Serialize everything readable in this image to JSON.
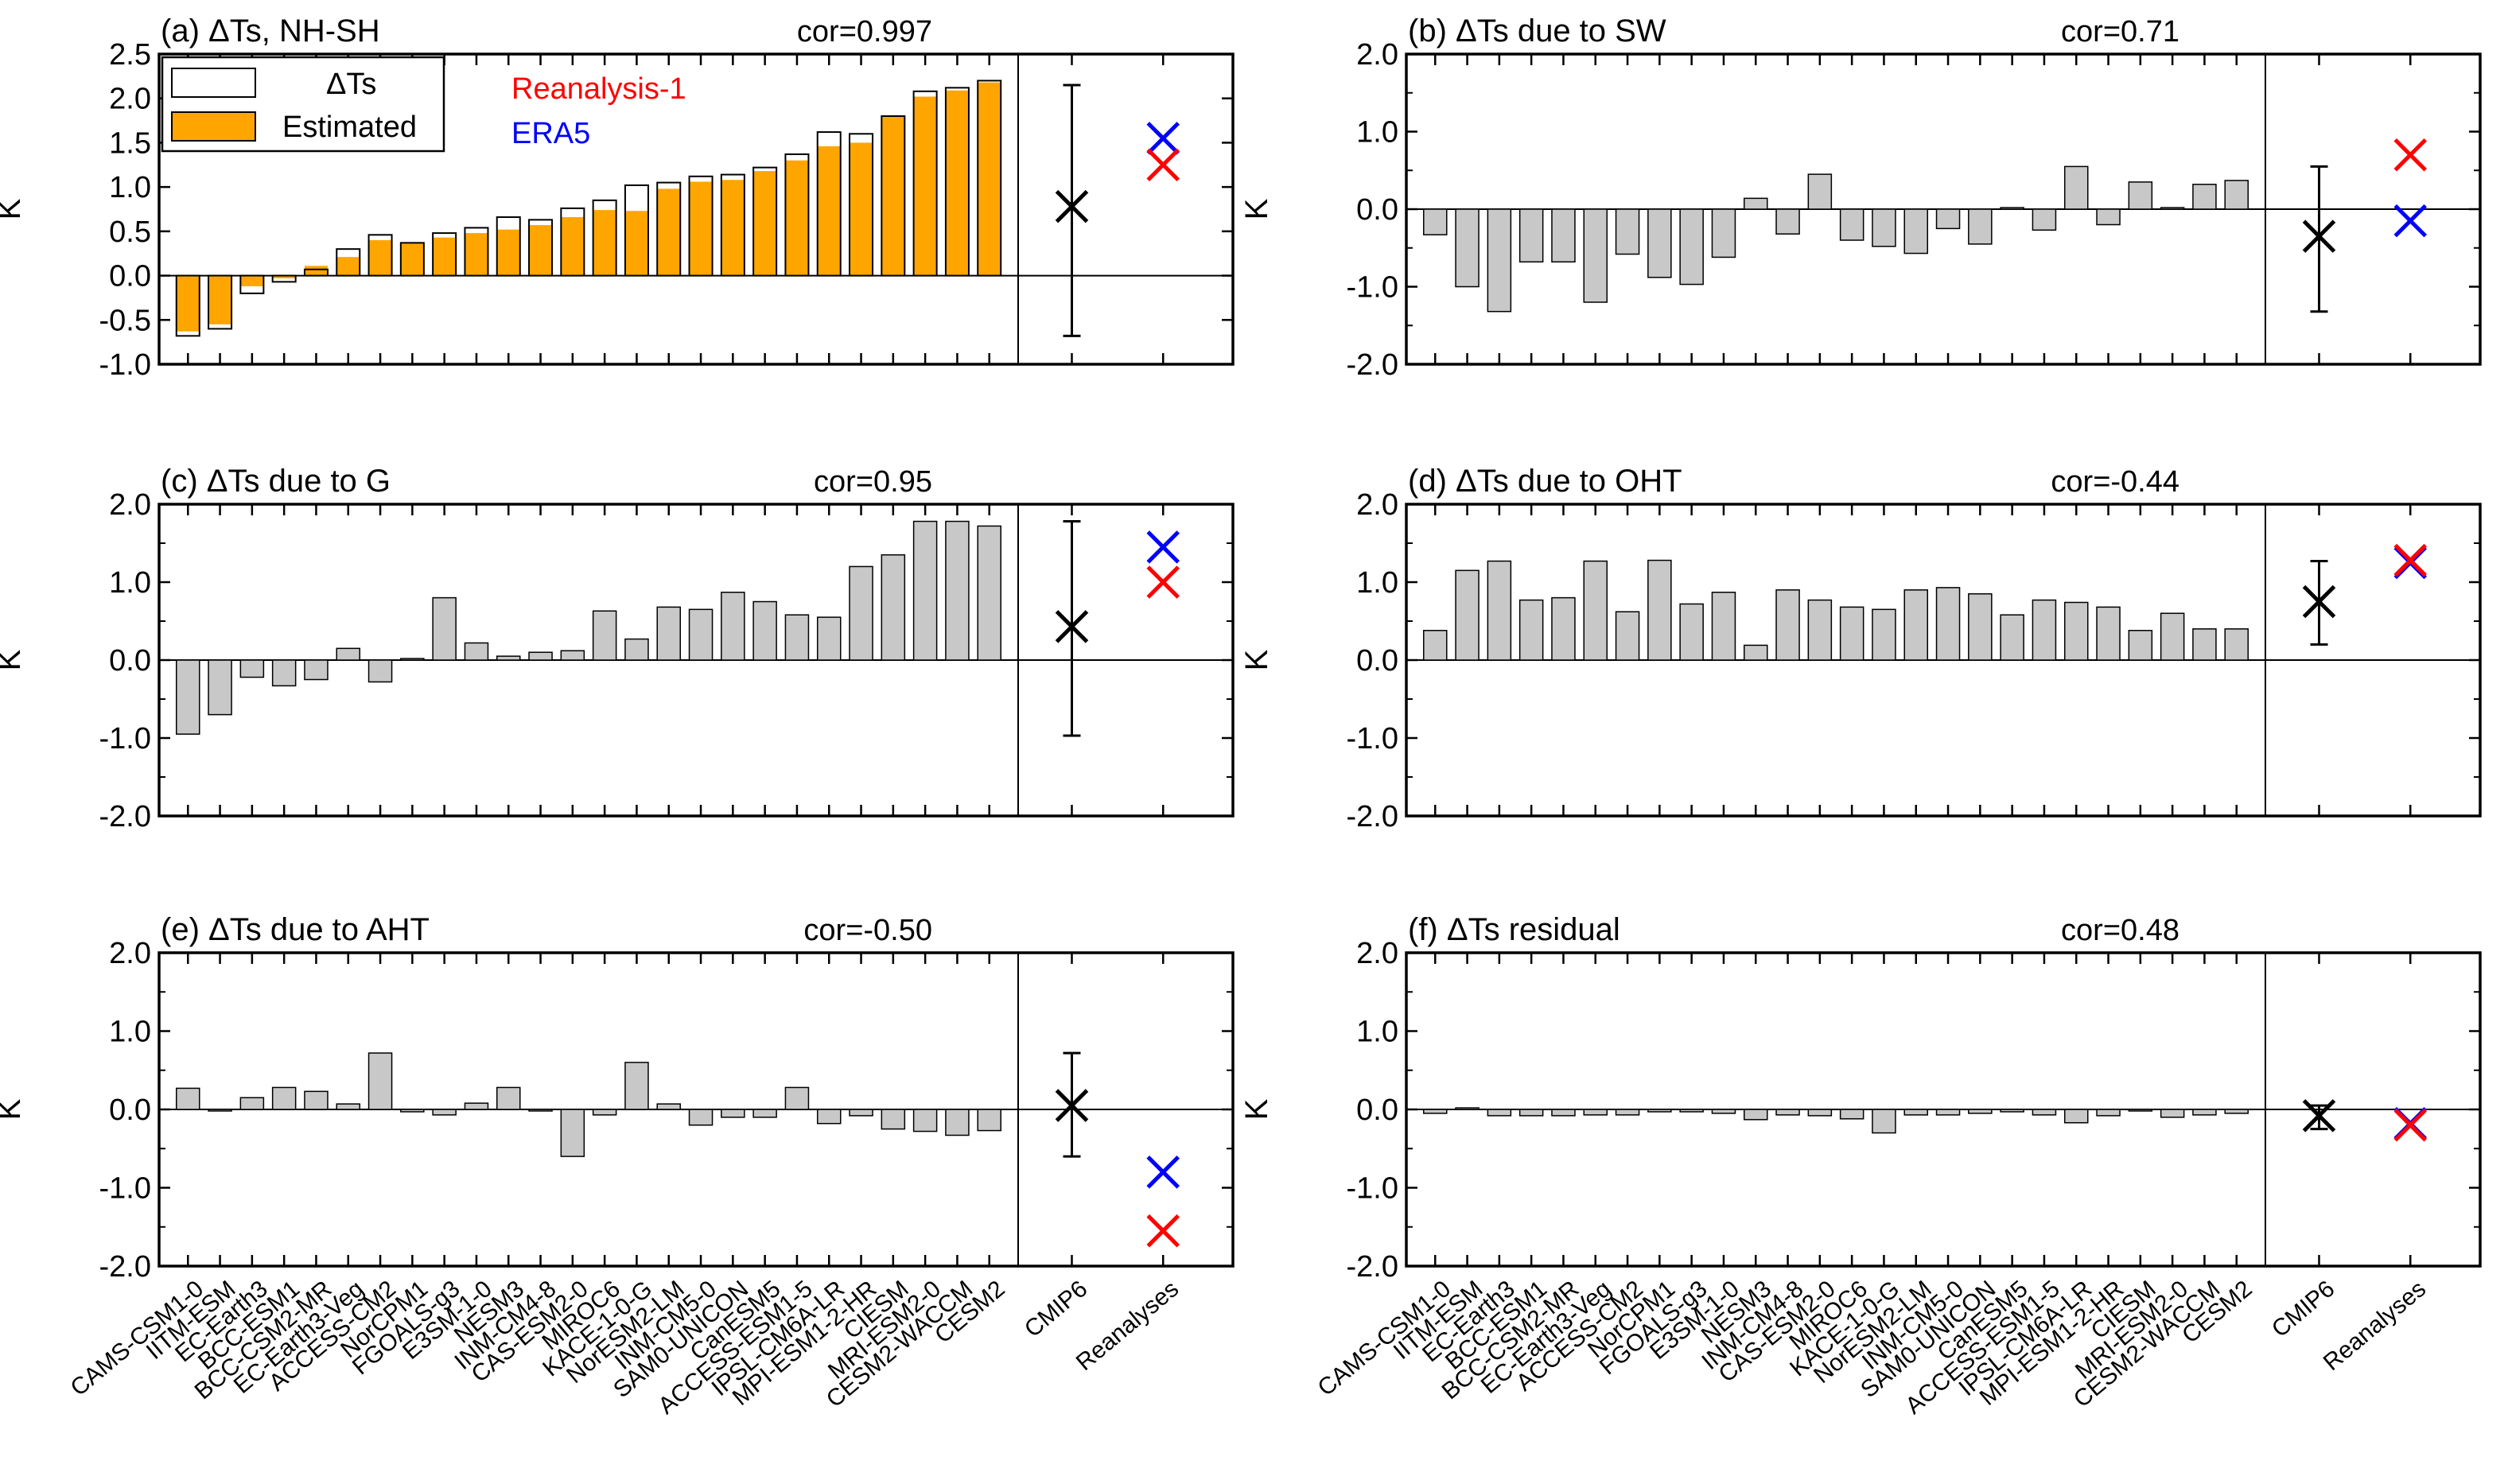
{
  "models": [
    "CAMS-CSM1-0",
    "IITM-ESM",
    "EC-Earth3",
    "BCC-ESM1",
    "BCC-CSM2-MR",
    "EC-Earth3-Veg",
    "ACCESS-CM2",
    "NorCPM1",
    "FGOALS-g3",
    "E3SM-1-0",
    "NESM3",
    "INM-CM4-8",
    "CAS-ESM2-0",
    "MIROC6",
    "KACE-1-0-G",
    "NorESM2-LM",
    "INM-CM5-0",
    "SAM0-UNICON",
    "CanESM5",
    "ACCESS-ESM1-5",
    "IPSL-CM6A-LR",
    "MPI-ESM1-2-HR",
    "CIESM",
    "MRI-ESM2-0",
    "CESM2-WACCM",
    "CESM2"
  ],
  "ens_labels": [
    "CMIP6",
    "Reanalyses"
  ],
  "ylabel": "K",
  "legend": {
    "bar_outline": "ΔTs",
    "bar_filled": "Estimated",
    "reanalysis1": "Reanalysis-1",
    "era5": "ERA5"
  },
  "colors": {
    "estimated_fill": "#ffa500",
    "bar_gray": "#c8c8c8",
    "reanalysis1": "#ff0000",
    "era5": "#0000ff",
    "cmip6": "#000000"
  },
  "chart_data": [
    {
      "type": "bar",
      "title": "(a) ΔTs, NH-SH",
      "cor": "cor=0.997",
      "ylim": [
        -1.0,
        2.5
      ],
      "yticks": [
        "-1.0",
        "-0.5",
        "0.0",
        "0.5",
        "1.0",
        "1.5",
        "2.0",
        "2.5"
      ],
      "ytick_values": [
        -1.0,
        -0.5,
        0.0,
        0.5,
        1.0,
        1.5,
        2.0,
        2.5
      ],
      "series": [
        {
          "name": "ΔTs",
          "values": [
            -0.68,
            -0.6,
            -0.2,
            -0.07,
            0.07,
            0.3,
            0.46,
            0.37,
            0.48,
            0.54,
            0.66,
            0.63,
            0.76,
            0.85,
            1.02,
            1.05,
            1.12,
            1.14,
            1.22,
            1.37,
            1.62,
            1.6,
            1.8,
            2.08,
            2.12,
            2.2
          ]
        },
        {
          "name": "Estimated",
          "values": [
            -0.63,
            -0.55,
            -0.12,
            -0.03,
            0.11,
            0.21,
            0.4,
            0.37,
            0.43,
            0.48,
            0.52,
            0.57,
            0.66,
            0.74,
            0.73,
            0.98,
            1.06,
            1.08,
            1.18,
            1.3,
            1.46,
            1.5,
            1.8,
            2.02,
            2.09,
            2.18
          ]
        }
      ],
      "cmip6": {
        "mean": 0.78,
        "low": -0.68,
        "high": 2.15
      },
      "reanalysis1": 1.25,
      "era5": 1.55
    },
    {
      "type": "bar",
      "title": "(b) ΔTs due to SW",
      "cor": "cor=0.71",
      "ylim": [
        -2.0,
        2.0
      ],
      "yticks": [
        "-2.0",
        "-1.0",
        "0.0",
        "1.0",
        "2.0"
      ],
      "ytick_values": [
        -2.0,
        -1.0,
        0.0,
        1.0,
        2.0
      ],
      "series": [
        {
          "name": "",
          "values": [
            -0.33,
            -1.0,
            -1.32,
            -0.68,
            -0.68,
            -1.2,
            -0.58,
            -0.88,
            -0.97,
            -0.62,
            0.14,
            -0.32,
            0.45,
            -0.4,
            -0.48,
            -0.57,
            -0.25,
            -0.45,
            0.02,
            -0.27,
            0.55,
            -0.2,
            0.35,
            0.02,
            0.32,
            0.37
          ]
        }
      ],
      "cmip6": {
        "mean": -0.35,
        "low": -1.32,
        "high": 0.55
      },
      "reanalysis1": 0.7,
      "era5": -0.15
    },
    {
      "type": "bar",
      "title": "(c) ΔTs due to G",
      "cor": "cor=0.95",
      "ylim": [
        -2.0,
        2.0
      ],
      "yticks": [
        "-2.0",
        "-1.0",
        "0.0",
        "1.0",
        "2.0"
      ],
      "ytick_values": [
        -2.0,
        -1.0,
        0.0,
        1.0,
        2.0
      ],
      "series": [
        {
          "name": "",
          "values": [
            -0.95,
            -0.7,
            -0.22,
            -0.33,
            -0.25,
            0.15,
            -0.28,
            0.02,
            0.8,
            0.22,
            0.05,
            0.1,
            0.12,
            0.63,
            0.27,
            0.68,
            0.65,
            0.87,
            0.75,
            0.58,
            0.55,
            1.2,
            1.35,
            1.78,
            1.78,
            1.72
          ]
        }
      ],
      "cmip6": {
        "mean": 0.43,
        "low": -0.97,
        "high": 1.78
      },
      "reanalysis1": 1.0,
      "era5": 1.45
    },
    {
      "type": "bar",
      "title": "(d) ΔTs due to OHT",
      "cor": "cor=-0.44",
      "ylim": [
        -2.0,
        2.0
      ],
      "yticks": [
        "-2.0",
        "-1.0",
        "0.0",
        "1.0",
        "2.0"
      ],
      "ytick_values": [
        -2.0,
        -1.0,
        0.0,
        1.0,
        2.0
      ],
      "series": [
        {
          "name": "",
          "values": [
            0.38,
            1.15,
            1.27,
            0.77,
            0.8,
            1.27,
            0.62,
            1.28,
            0.72,
            0.87,
            0.19,
            0.9,
            0.77,
            0.68,
            0.65,
            0.9,
            0.93,
            0.85,
            0.58,
            0.77,
            0.74,
            0.68,
            0.38,
            0.6,
            0.4,
            0.4
          ]
        }
      ],
      "cmip6": {
        "mean": 0.75,
        "low": 0.2,
        "high": 1.27
      },
      "reanalysis1": 1.28,
      "era5": 1.25
    },
    {
      "type": "bar",
      "title": "(e) ΔTs due to AHT",
      "cor": "cor=-0.50",
      "ylim": [
        -2.0,
        2.0
      ],
      "yticks": [
        "-2.0",
        "-1.0",
        "0.0",
        "1.0",
        "2.0"
      ],
      "ytick_values": [
        -2.0,
        -1.0,
        0.0,
        1.0,
        2.0
      ],
      "series": [
        {
          "name": "",
          "values": [
            0.27,
            -0.02,
            0.15,
            0.28,
            0.23,
            0.07,
            0.72,
            -0.03,
            -0.07,
            0.08,
            0.28,
            -0.02,
            -0.6,
            -0.07,
            0.6,
            0.07,
            -0.2,
            -0.1,
            -0.1,
            0.28,
            -0.18,
            -0.08,
            -0.25,
            -0.28,
            -0.33,
            -0.27
          ]
        }
      ],
      "cmip6": {
        "mean": 0.05,
        "low": -0.6,
        "high": 0.72
      },
      "reanalysis1": -1.55,
      "era5": -0.8
    },
    {
      "type": "bar",
      "title": "(f) ΔTs residual",
      "cor": "cor=0.48",
      "ylim": [
        -2.0,
        2.0
      ],
      "yticks": [
        "-2.0",
        "-1.0",
        "0.0",
        "1.0",
        "2.0"
      ],
      "ytick_values": [
        -2.0,
        -1.0,
        0.0,
        1.0,
        2.0
      ],
      "series": [
        {
          "name": "",
          "values": [
            -0.05,
            0.02,
            -0.08,
            -0.08,
            -0.08,
            -0.07,
            -0.07,
            -0.03,
            -0.03,
            -0.05,
            -0.13,
            -0.07,
            -0.08,
            -0.12,
            -0.3,
            -0.07,
            -0.07,
            -0.05,
            -0.03,
            -0.07,
            -0.17,
            -0.08,
            -0.02,
            -0.1,
            -0.07,
            -0.05
          ]
        }
      ],
      "cmip6": {
        "mean": -0.08,
        "low": -0.25,
        "high": 0.05
      },
      "reanalysis1": -0.2,
      "era5": -0.18
    }
  ]
}
